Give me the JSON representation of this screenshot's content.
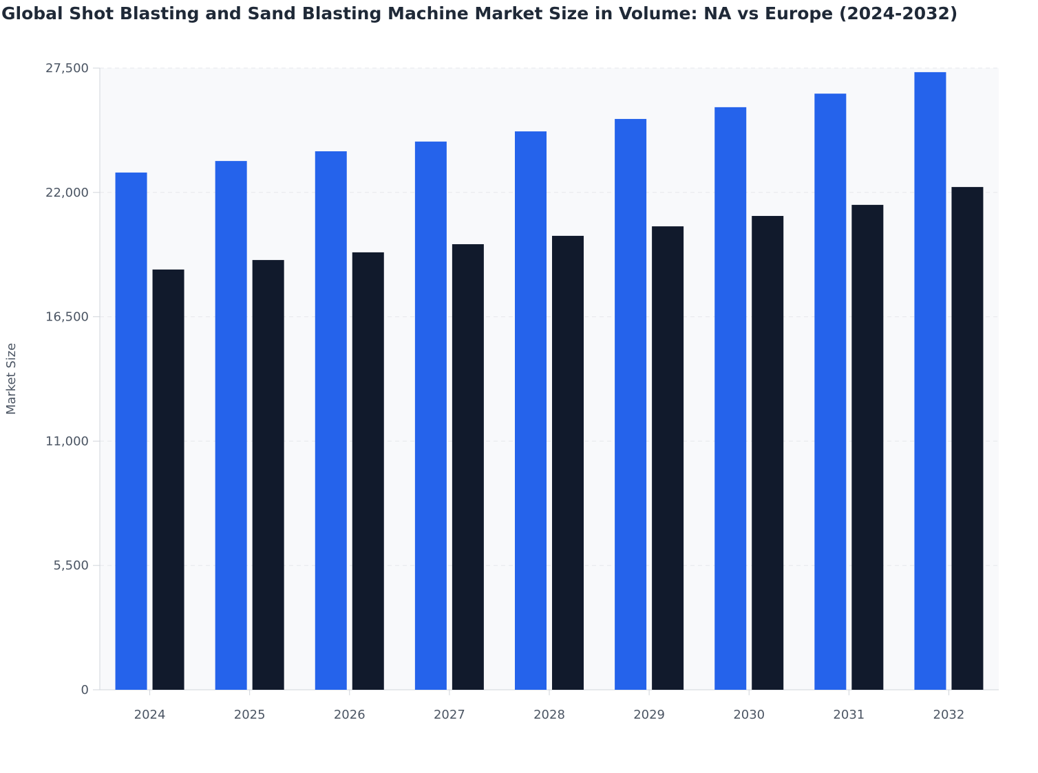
{
  "chart_data": {
    "type": "bar",
    "title": "Global Shot Blasting and Sand Blasting Machine Market Size in Volume: NA vs Europe (2024-2032)",
    "y_label": "Market Size",
    "categories": [
      "2024",
      "2025",
      "2026",
      "2027",
      "2028",
      "2029",
      "2030",
      "2031",
      "2032"
    ],
    "series": [
      {
        "color": "#2563eb",
        "values": [
          22880,
          23390,
          23820,
          24250,
          24700,
          25250,
          25770,
          26370,
          27320
        ]
      },
      {
        "color": "#111a2c",
        "values": [
          18590,
          19010,
          19350,
          19710,
          20080,
          20500,
          20960,
          21450,
          22240
        ]
      }
    ],
    "ylim": [
      0,
      27500
    ],
    "yticks": [
      0,
      {
        "value": 5500,
        "label": "5,500"
      },
      {
        "value": 11000,
        "label": "11,000"
      },
      {
        "value": 16500,
        "label": "16,500"
      },
      {
        "value": 22000,
        "label": "22,000"
      },
      {
        "value": 27500,
        "label": "27,500"
      }
    ],
    "grid": true
  }
}
